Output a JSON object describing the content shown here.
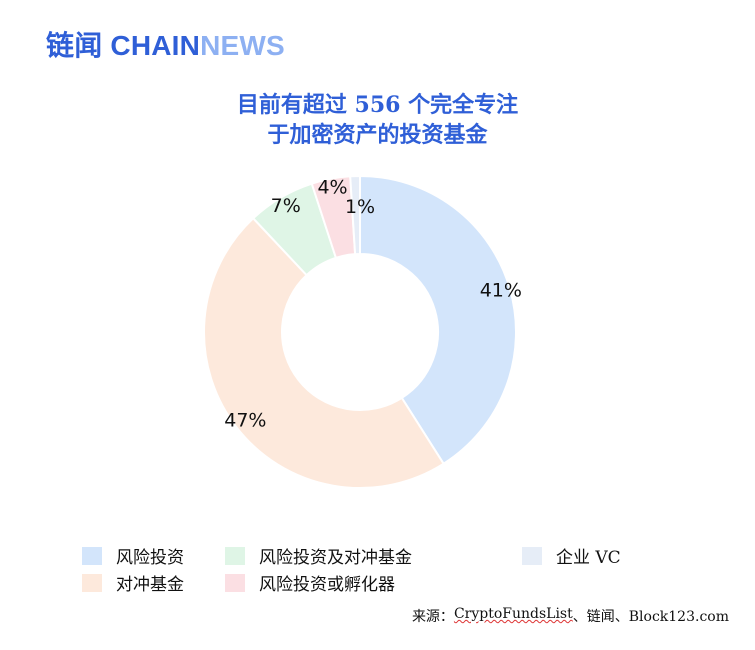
{
  "brand": {
    "cn": "链闻",
    "chain": "CHAIN",
    "news": "NEWS",
    "color_primary": "#2f5fd7",
    "color_secondary": "#8db0f2"
  },
  "title_lines": [
    "目前有超过 556 个完全专注",
    "于加密资产的投资基金"
  ],
  "source": {
    "prefix": "来源：",
    "link_text": "CryptoFundsList",
    "suffix": "、链闻、Block123.com"
  },
  "chart_data": {
    "type": "pie",
    "donut": true,
    "title": "目前有超过 556 个完全专注于加密资产的投资基金",
    "slices": [
      {
        "name": "风险投资",
        "value": 41,
        "label": "41%",
        "color": "#d3e5fb"
      },
      {
        "name": "对冲基金",
        "value": 47,
        "label": "47%",
        "color": "#fde9dc"
      },
      {
        "name": "风险投资及对冲基金",
        "value": 7,
        "label": "7%",
        "color": "#dff5e6"
      },
      {
        "name": "风险投资或孵化器",
        "value": 4,
        "label": "4%",
        "color": "#fbdfe3"
      },
      {
        "name": "企业 VC",
        "value": 1,
        "label": "1%",
        "color": "#e6edf7"
      }
    ],
    "legend_position": "bottom"
  }
}
